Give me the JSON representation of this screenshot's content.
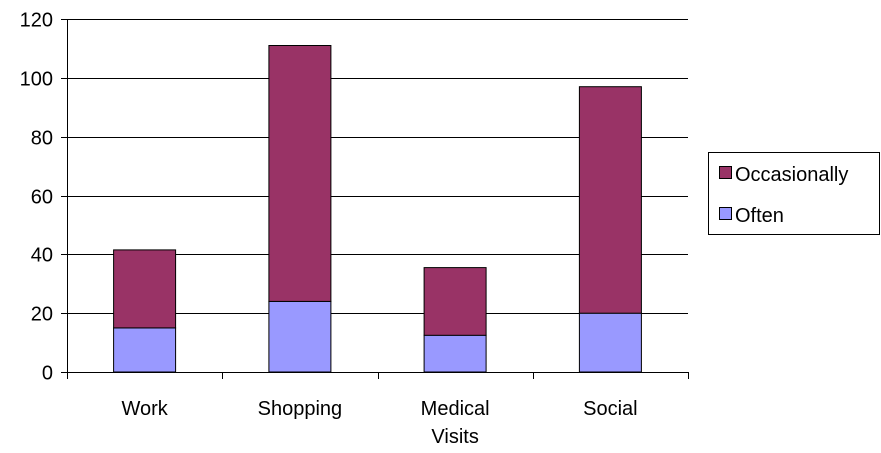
{
  "chart_data": {
    "type": "bar",
    "stacked": true,
    "categories": [
      "Work",
      "Shopping",
      "Medical Visits",
      "Social"
    ],
    "category_label_lines": [
      [
        "Work"
      ],
      [
        "Shopping"
      ],
      [
        "Medical",
        "Visits"
      ],
      [
        "Social"
      ]
    ],
    "series": [
      {
        "name": "Often",
        "values": [
          15,
          24,
          12.5,
          20
        ],
        "color": "#9999ff"
      },
      {
        "name": "Occasionally",
        "values": [
          26.5,
          87,
          23,
          77
        ],
        "color": "#993366"
      }
    ],
    "ylim": [
      0,
      120
    ],
    "yticks": [
      0,
      20,
      40,
      60,
      80,
      100,
      120
    ],
    "ytick_labels": [
      "0",
      "20",
      "40",
      "60",
      "80",
      "100",
      "120"
    ],
    "grid": true,
    "legend_position": "right",
    "legend_order": [
      "Occasionally",
      "Often"
    ],
    "title": "",
    "xlabel": "",
    "ylabel": ""
  }
}
